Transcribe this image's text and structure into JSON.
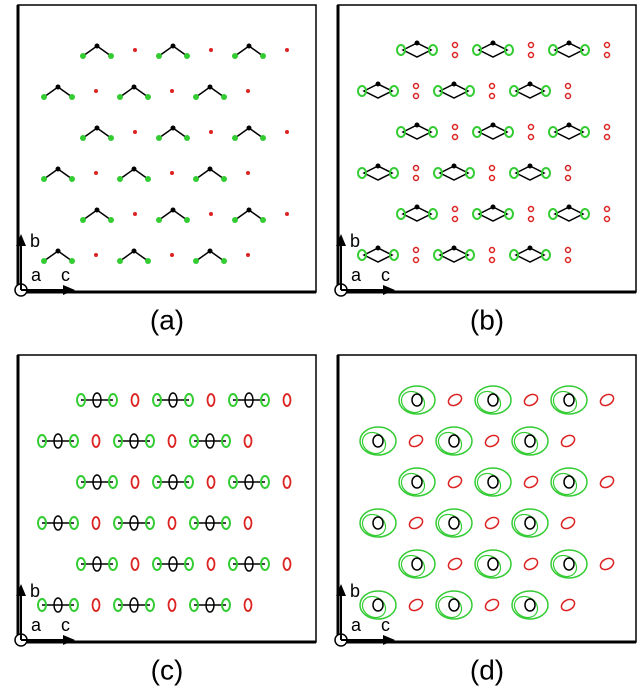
{
  "panels": [
    {
      "label": "(a)",
      "axis_labels": [
        "b",
        "a",
        "c"
      ]
    },
    {
      "label": "(b)",
      "axis_labels": [
        "b",
        "a",
        "c"
      ]
    },
    {
      "label": "(c)",
      "axis_labels": [
        "b",
        "a",
        "c"
      ]
    },
    {
      "label": "(d)",
      "axis_labels": [
        "b",
        "a",
        "c"
      ]
    }
  ]
}
